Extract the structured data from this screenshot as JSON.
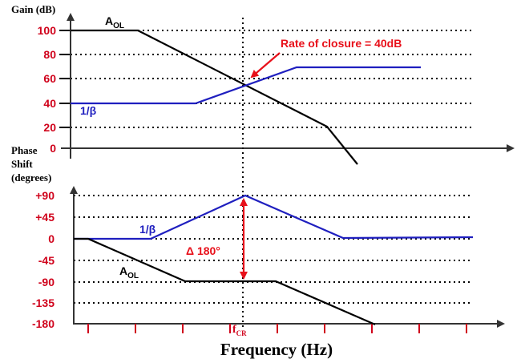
{
  "gain_axis_label": "Gain (dB)",
  "phase_axis_label": [
    "Phase",
    "Shift",
    "(degrees)"
  ],
  "gain_ticks": [
    "100",
    "80",
    "60",
    "40",
    "20",
    "0"
  ],
  "phase_ticks": [
    "+90",
    "+45",
    "0",
    "-45",
    "-90",
    "-135",
    "-180"
  ],
  "labels": {
    "aol_gain": "A",
    "aol_gain_sub": "OL",
    "beta_gain": "1/β",
    "rate_of_closure": "Rate of closure = 40dB",
    "beta_phase": "1/β",
    "aol_phase": "A",
    "aol_phase_sub": "OL",
    "delta": "Δ 180°",
    "fcr": "f",
    "fcr_sub": "CR",
    "x_title": "Frequency (Hz)"
  },
  "colors": {
    "black": "#000000",
    "blue": "#1f1fbf",
    "red": "#d0021b",
    "arrow_red": "#e8101a"
  },
  "chart_data": [
    {
      "type": "line",
      "panel": "gain",
      "ylabel": "Gain (dB)",
      "yticks": [
        100,
        80,
        60,
        40,
        20,
        0
      ],
      "grid": true,
      "series": [
        {
          "name": "A",
          "color": "#000000"
        },
        {
          "name": "1/β",
          "color": "#1f1fbf"
        }
      ]
    },
    {
      "type": "line",
      "panel": "phase",
      "ylabel": "Phase Shift (degrees)",
      "yticks": [
        90,
        45,
        0,
        -45,
        -90,
        -135,
        -180
      ],
      "xlabel": "Frequency (Hz)",
      "grid": true,
      "series": [
        {
          "name": "1/β",
          "color": "#1f1fbf"
        },
        {
          "name": "A",
          "color": "#000000"
        }
      ]
    }
  ]
}
